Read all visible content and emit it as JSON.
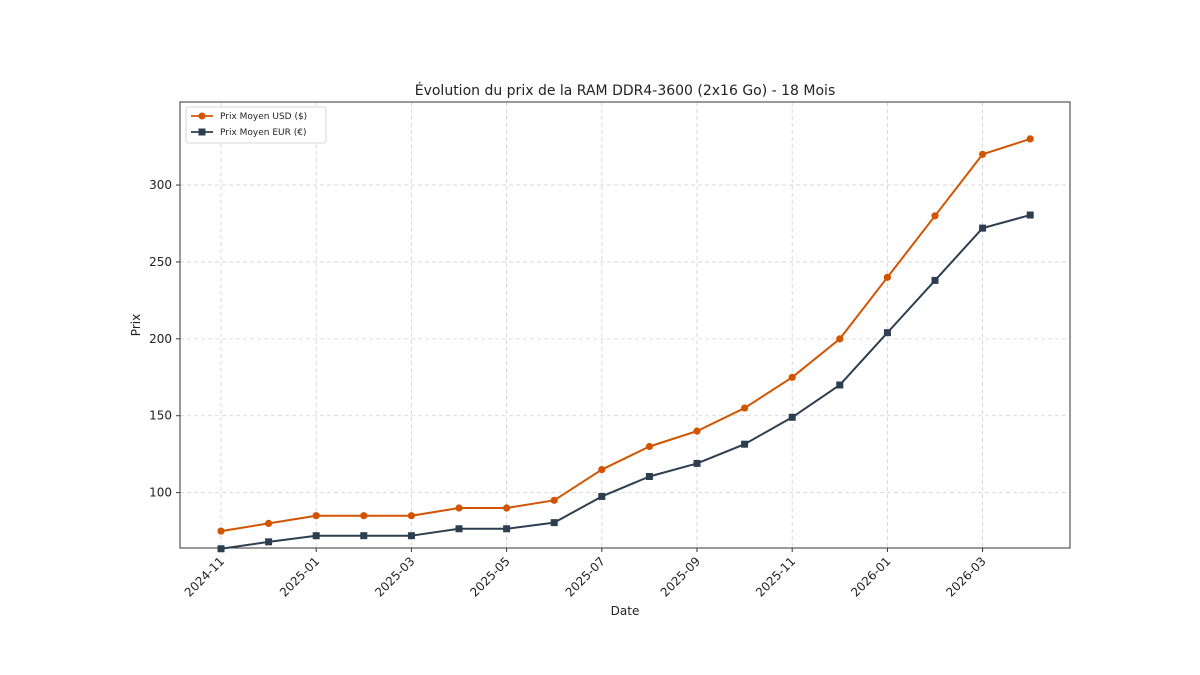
{
  "chart_data": {
    "type": "line",
    "title": "Évolution du prix de la RAM DDR4-3600 (2x16 Go) - 18 Mois",
    "xlabel": "Date",
    "ylabel": "Prix",
    "x": [
      "2024-11",
      "2024-12",
      "2025-01",
      "2025-02",
      "2025-03",
      "2025-04",
      "2025-05",
      "2025-06",
      "2025-07",
      "2025-08",
      "2025-09",
      "2025-10",
      "2025-11",
      "2025-12",
      "2026-01",
      "2026-02",
      "2026-03",
      "2026-04"
    ],
    "x_tick_labels": [
      "2024-11",
      "2025-01",
      "2025-03",
      "2025-05",
      "2025-07",
      "2025-09",
      "2025-11",
      "2026-01",
      "2026-03"
    ],
    "y_ticks": [
      100,
      150,
      200,
      250,
      300
    ],
    "ylim": [
      64,
      354
    ],
    "grid": true,
    "legend_position": "top-left",
    "series": [
      {
        "name": "Prix Moyen USD ($)",
        "color": "#d35400",
        "marker": "circle",
        "values": [
          75,
          80,
          85,
          85,
          85,
          90,
          90,
          95,
          115,
          130,
          140,
          155,
          175,
          200,
          240,
          280,
          320,
          330
        ]
      },
      {
        "name": "Prix Moyen EUR (€)",
        "color": "#2c3e50",
        "marker": "square",
        "values": [
          63.5,
          68,
          72,
          72,
          72,
          76.5,
          76.5,
          80.5,
          97.5,
          110.5,
          119,
          131.5,
          149,
          170,
          204,
          238,
          272,
          280.5
        ]
      }
    ]
  }
}
